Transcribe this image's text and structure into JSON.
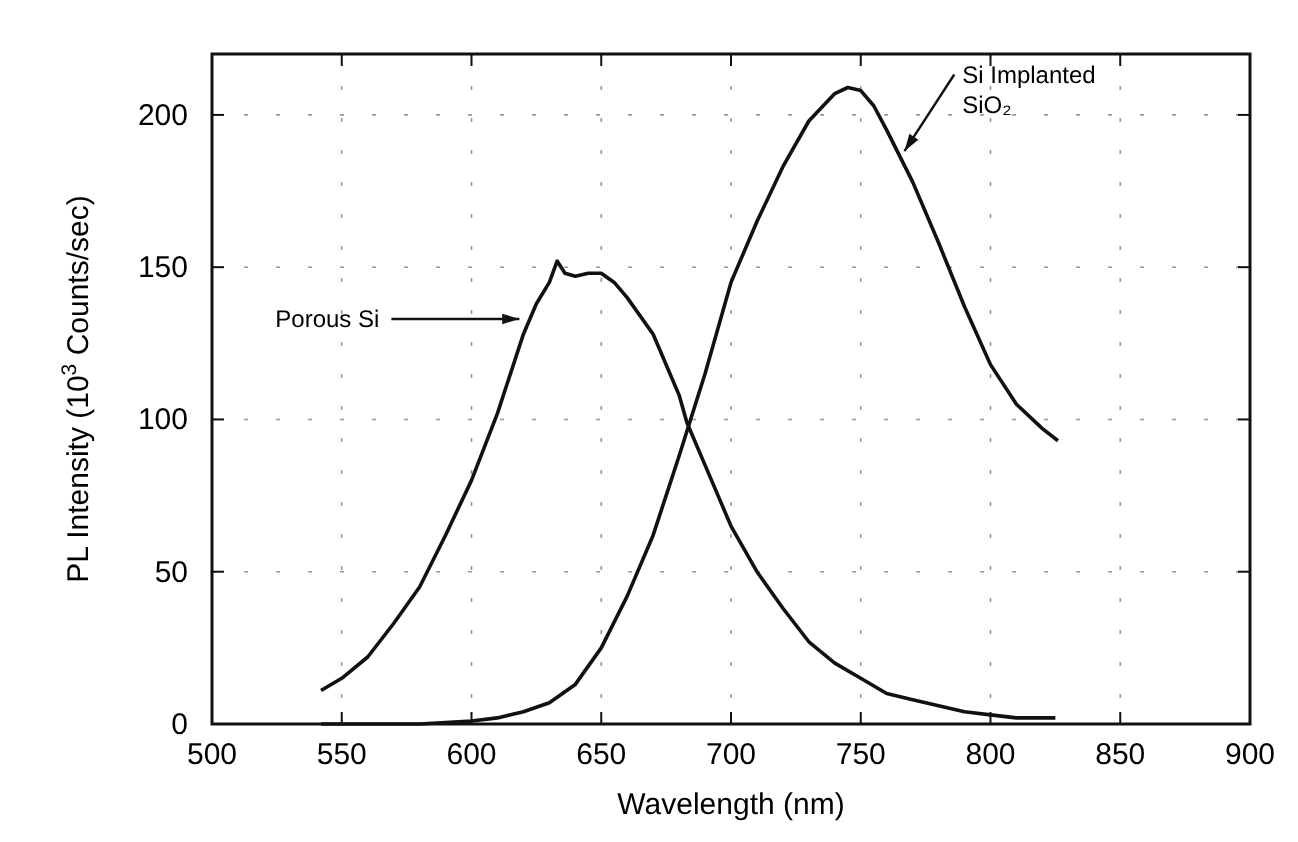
{
  "chart_data": {
    "type": "line",
    "xlabel": "Wavelength (nm)",
    "ylabel": "PL Intensity (10$^{3}$ Counts/sec)",
    "xlim": [
      500,
      900
    ],
    "ylim": [
      0,
      220
    ],
    "xticks": [
      500,
      550,
      600,
      650,
      700,
      750,
      800,
      850,
      900
    ],
    "yticks": [
      0,
      50,
      100,
      150,
      200
    ],
    "grid": true,
    "line_style": "solid",
    "marker": "none",
    "series": [
      {
        "color": "#111111",
        "x": [
          542,
          550,
          560,
          570,
          580,
          590,
          600,
          610,
          620,
          625,
          630,
          633,
          636,
          640,
          645,
          650,
          655,
          660,
          670,
          680,
          683,
          690,
          700,
          710,
          720,
          730,
          740,
          750,
          760,
          770,
          780,
          790,
          800,
          810,
          825
        ],
        "values": [
          11,
          15,
          22,
          33,
          45,
          62,
          80,
          102,
          128,
          138,
          145,
          152,
          148,
          147,
          148,
          148,
          145,
          140,
          128,
          108,
          99,
          85,
          65,
          50,
          38,
          27,
          20,
          15,
          10,
          8,
          6,
          4,
          3,
          2,
          2
        ]
      },
      {
        "color": "#111111",
        "x": [
          542,
          560,
          580,
          600,
          610,
          620,
          630,
          640,
          650,
          660,
          670,
          680,
          690,
          700,
          710,
          720,
          730,
          740,
          745,
          750,
          755,
          760,
          770,
          780,
          790,
          800,
          810,
          820,
          826
        ],
        "values": [
          0,
          0,
          0,
          1,
          2,
          4,
          7,
          13,
          25,
          42,
          62,
          88,
          115,
          145,
          165,
          183,
          198,
          207,
          209,
          208,
          203,
          195,
          178,
          158,
          137,
          118,
          105,
          97,
          93
        ]
      }
    ],
    "annotations": [
      {
        "text": "Porous Si",
        "x": 620,
        "y": 133
      },
      {
        "text": "Si Implanted\nSiO₂",
        "x": 766,
        "y": 187
      }
    ]
  }
}
